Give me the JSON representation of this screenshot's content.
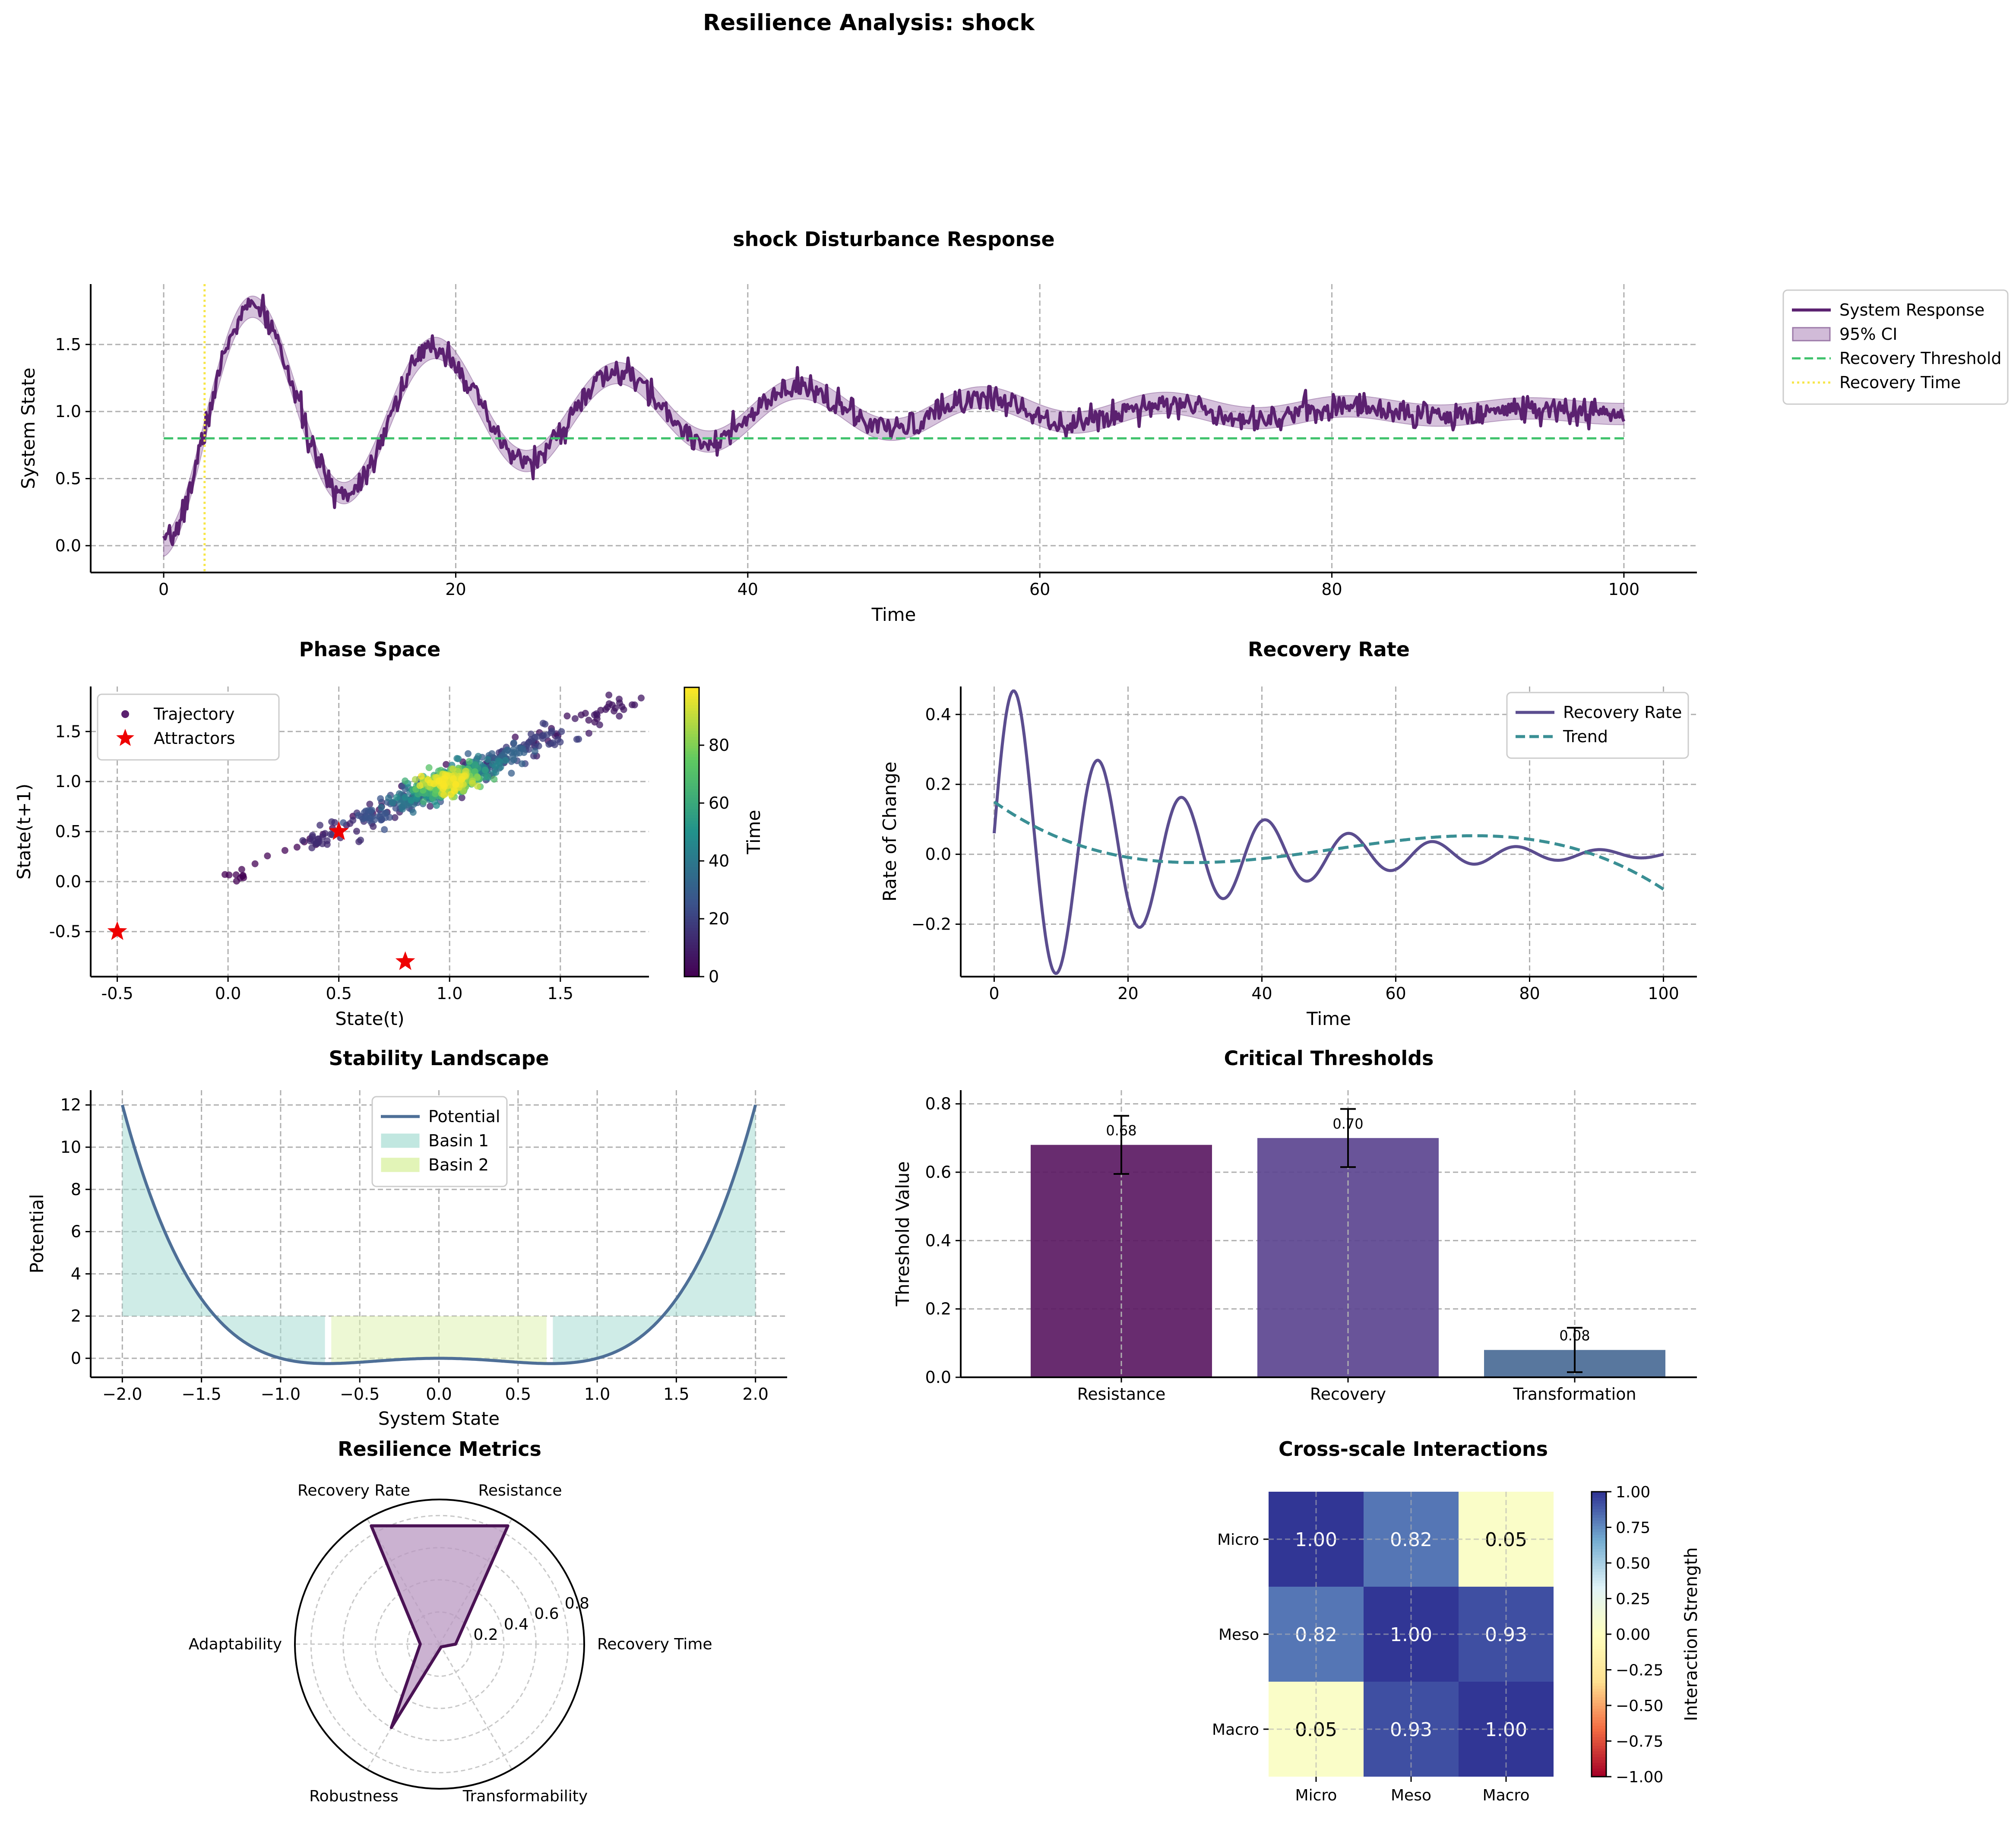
{
  "suptitle": "Resilience Analysis: shock",
  "colors": {
    "purple": "#5b2170",
    "ci": "#b48fbf",
    "green": "#3ec26b",
    "yellow": "#f7e64a",
    "grid": "#b0b0b0",
    "recovery_line": "#5b4d8f",
    "trend": "#3a8f94",
    "landscape": "#4e6f97",
    "basin1": "#a8ddd3",
    "basin2": "#dff3b0",
    "attractor": "#ee0000",
    "bar1": "#5b1a63",
    "bar2": "#5c4590",
    "bar3": "#4a6b96",
    "radar": "#4a1254",
    "radar_fill": "#b998c1"
  },
  "chart_data": [
    {
      "id": "response",
      "type": "line",
      "title": "shock Disturbance Response",
      "xlabel": "Time",
      "ylabel": "System State",
      "xlim": [
        -5,
        105
      ],
      "ylim": [
        -0.2,
        1.95
      ],
      "xticks": [
        "0",
        "20",
        "40",
        "60",
        "80",
        "100"
      ],
      "yticks": [
        "0.0",
        "0.5",
        "1.0",
        "1.5"
      ],
      "grid": true,
      "legend_placement": "outside-right",
      "model": {
        "t0": 0,
        "t1": 100,
        "equilibrium": 1.0,
        "amplitude": 1.0,
        "damping": 0.04,
        "period": 12.5,
        "noise": 0.05,
        "ci_halfwidth": 0.08
      },
      "recovery_threshold": 0.8,
      "recovery_time": 2.8,
      "series": [
        {
          "name": "System Response"
        },
        {
          "name": "95% CI"
        },
        {
          "name": "Recovery Threshold"
        },
        {
          "name": "Recovery Time"
        }
      ]
    },
    {
      "id": "phase",
      "type": "scatter",
      "title": "Phase Space",
      "xlabel": "State(t)",
      "ylabel": "State(t+1)",
      "xlim": [
        -0.62,
        1.9
      ],
      "ylim": [
        -0.95,
        1.95
      ],
      "xticks": [
        "-0.5",
        "0.0",
        "0.5",
        "1.0",
        "1.5"
      ],
      "yticks": [
        "-0.5",
        "0.0",
        "0.5",
        "1.0",
        "1.5"
      ],
      "colorbar": {
        "label": "Time",
        "range": [
          0,
          100
        ],
        "ticks": [
          "0",
          "20",
          "40",
          "60",
          "80"
        ]
      },
      "attractors": [
        {
          "x": -0.5,
          "y": -0.5
        },
        {
          "x": 0.5,
          "y": 0.5
        },
        {
          "x": 0.8,
          "y": -0.8
        }
      ],
      "legend_placement": "top-left",
      "series": [
        {
          "name": "Trajectory"
        },
        {
          "name": "Attractors"
        }
      ]
    },
    {
      "id": "rate",
      "type": "line",
      "title": "Recovery Rate",
      "xlabel": "Time",
      "ylabel": "Rate of Change",
      "xlim": [
        -5,
        105
      ],
      "ylim": [
        -0.35,
        0.48
      ],
      "xticks": [
        "0",
        "20",
        "40",
        "60",
        "80",
        "100"
      ],
      "yticks": [
        "−0.2",
        "0.0",
        "0.2",
        "0.4"
      ],
      "model": {
        "amplitude": 0.5,
        "damping": 0.04,
        "period": 12.5,
        "trend_poly": [
          0.15,
          -0.0135,
          0.00032,
          -2.1e-06
        ]
      },
      "legend_placement": "top-right",
      "series": [
        {
          "name": "Recovery Rate"
        },
        {
          "name": "Trend"
        }
      ]
    },
    {
      "id": "landscape",
      "type": "line",
      "title": "Stability Landscape",
      "xlabel": "System State",
      "ylabel": "Potential",
      "xlim": [
        -2.2,
        2.2
      ],
      "ylim": [
        -0.9,
        12.7
      ],
      "xticks": [
        "−2.0",
        "−1.5",
        "−1.0",
        "−0.5",
        "0.0",
        "0.5",
        "1.0",
        "1.5",
        "2.0"
      ],
      "yticks": [
        "0",
        "2",
        "4",
        "6",
        "8",
        "10",
        "12"
      ],
      "potential": "x^4 - x^2",
      "basin_level": 2,
      "basin2_range": [
        -0.68,
        0.68
      ],
      "legend_placement": "top-center",
      "series": [
        {
          "name": "Potential"
        },
        {
          "name": "Basin 1"
        },
        {
          "name": "Basin 2"
        }
      ]
    },
    {
      "id": "thresholds",
      "type": "bar",
      "title": "Critical Thresholds",
      "ylabel": "Threshold Value",
      "categories": [
        "Resistance",
        "Recovery",
        "Transformation"
      ],
      "values": [
        0.68,
        0.7,
        0.08
      ],
      "value_labels": [
        "0.68",
        "0.70",
        "0.08"
      ],
      "errors": [
        0.085,
        0.085,
        0.065
      ],
      "ylim": [
        0,
        0.84
      ],
      "yticks": [
        "0.0",
        "0.2",
        "0.4",
        "0.6",
        "0.8"
      ]
    },
    {
      "id": "radar",
      "type": "radar",
      "title": "Resilience Metrics",
      "axes": [
        "Resistance",
        "Recovery Time",
        "Transformability",
        "Robustness",
        "Adaptability",
        "Recovery Rate"
      ],
      "values": [
        0.85,
        0.1,
        0.02,
        0.6,
        0.12,
        0.85
      ],
      "rmax": 0.9,
      "rticks": [
        "0.2",
        "0.4",
        "0.6",
        "0.8"
      ]
    },
    {
      "id": "heatmap",
      "type": "heatmap",
      "title": "Cross-scale Interactions",
      "rows": [
        "Micro",
        "Meso",
        "Macro"
      ],
      "cols": [
        "Micro",
        "Meso",
        "Macro"
      ],
      "values": [
        [
          1.0,
          0.82,
          0.05
        ],
        [
          0.82,
          1.0,
          0.93
        ],
        [
          0.05,
          0.93,
          1.0
        ]
      ],
      "labels": [
        [
          "1.00",
          "0.82",
          "0.05"
        ],
        [
          "0.82",
          "1.00",
          "0.93"
        ],
        [
          "0.05",
          "0.93",
          "1.00"
        ]
      ],
      "colorbar": {
        "label": "Interaction Strength",
        "range": [
          -1,
          1
        ],
        "ticks": [
          "1.00",
          "0.75",
          "0.50",
          "0.25",
          "0.00",
          "−0.25",
          "−0.50",
          "−0.75",
          "−1.00"
        ]
      }
    }
  ]
}
